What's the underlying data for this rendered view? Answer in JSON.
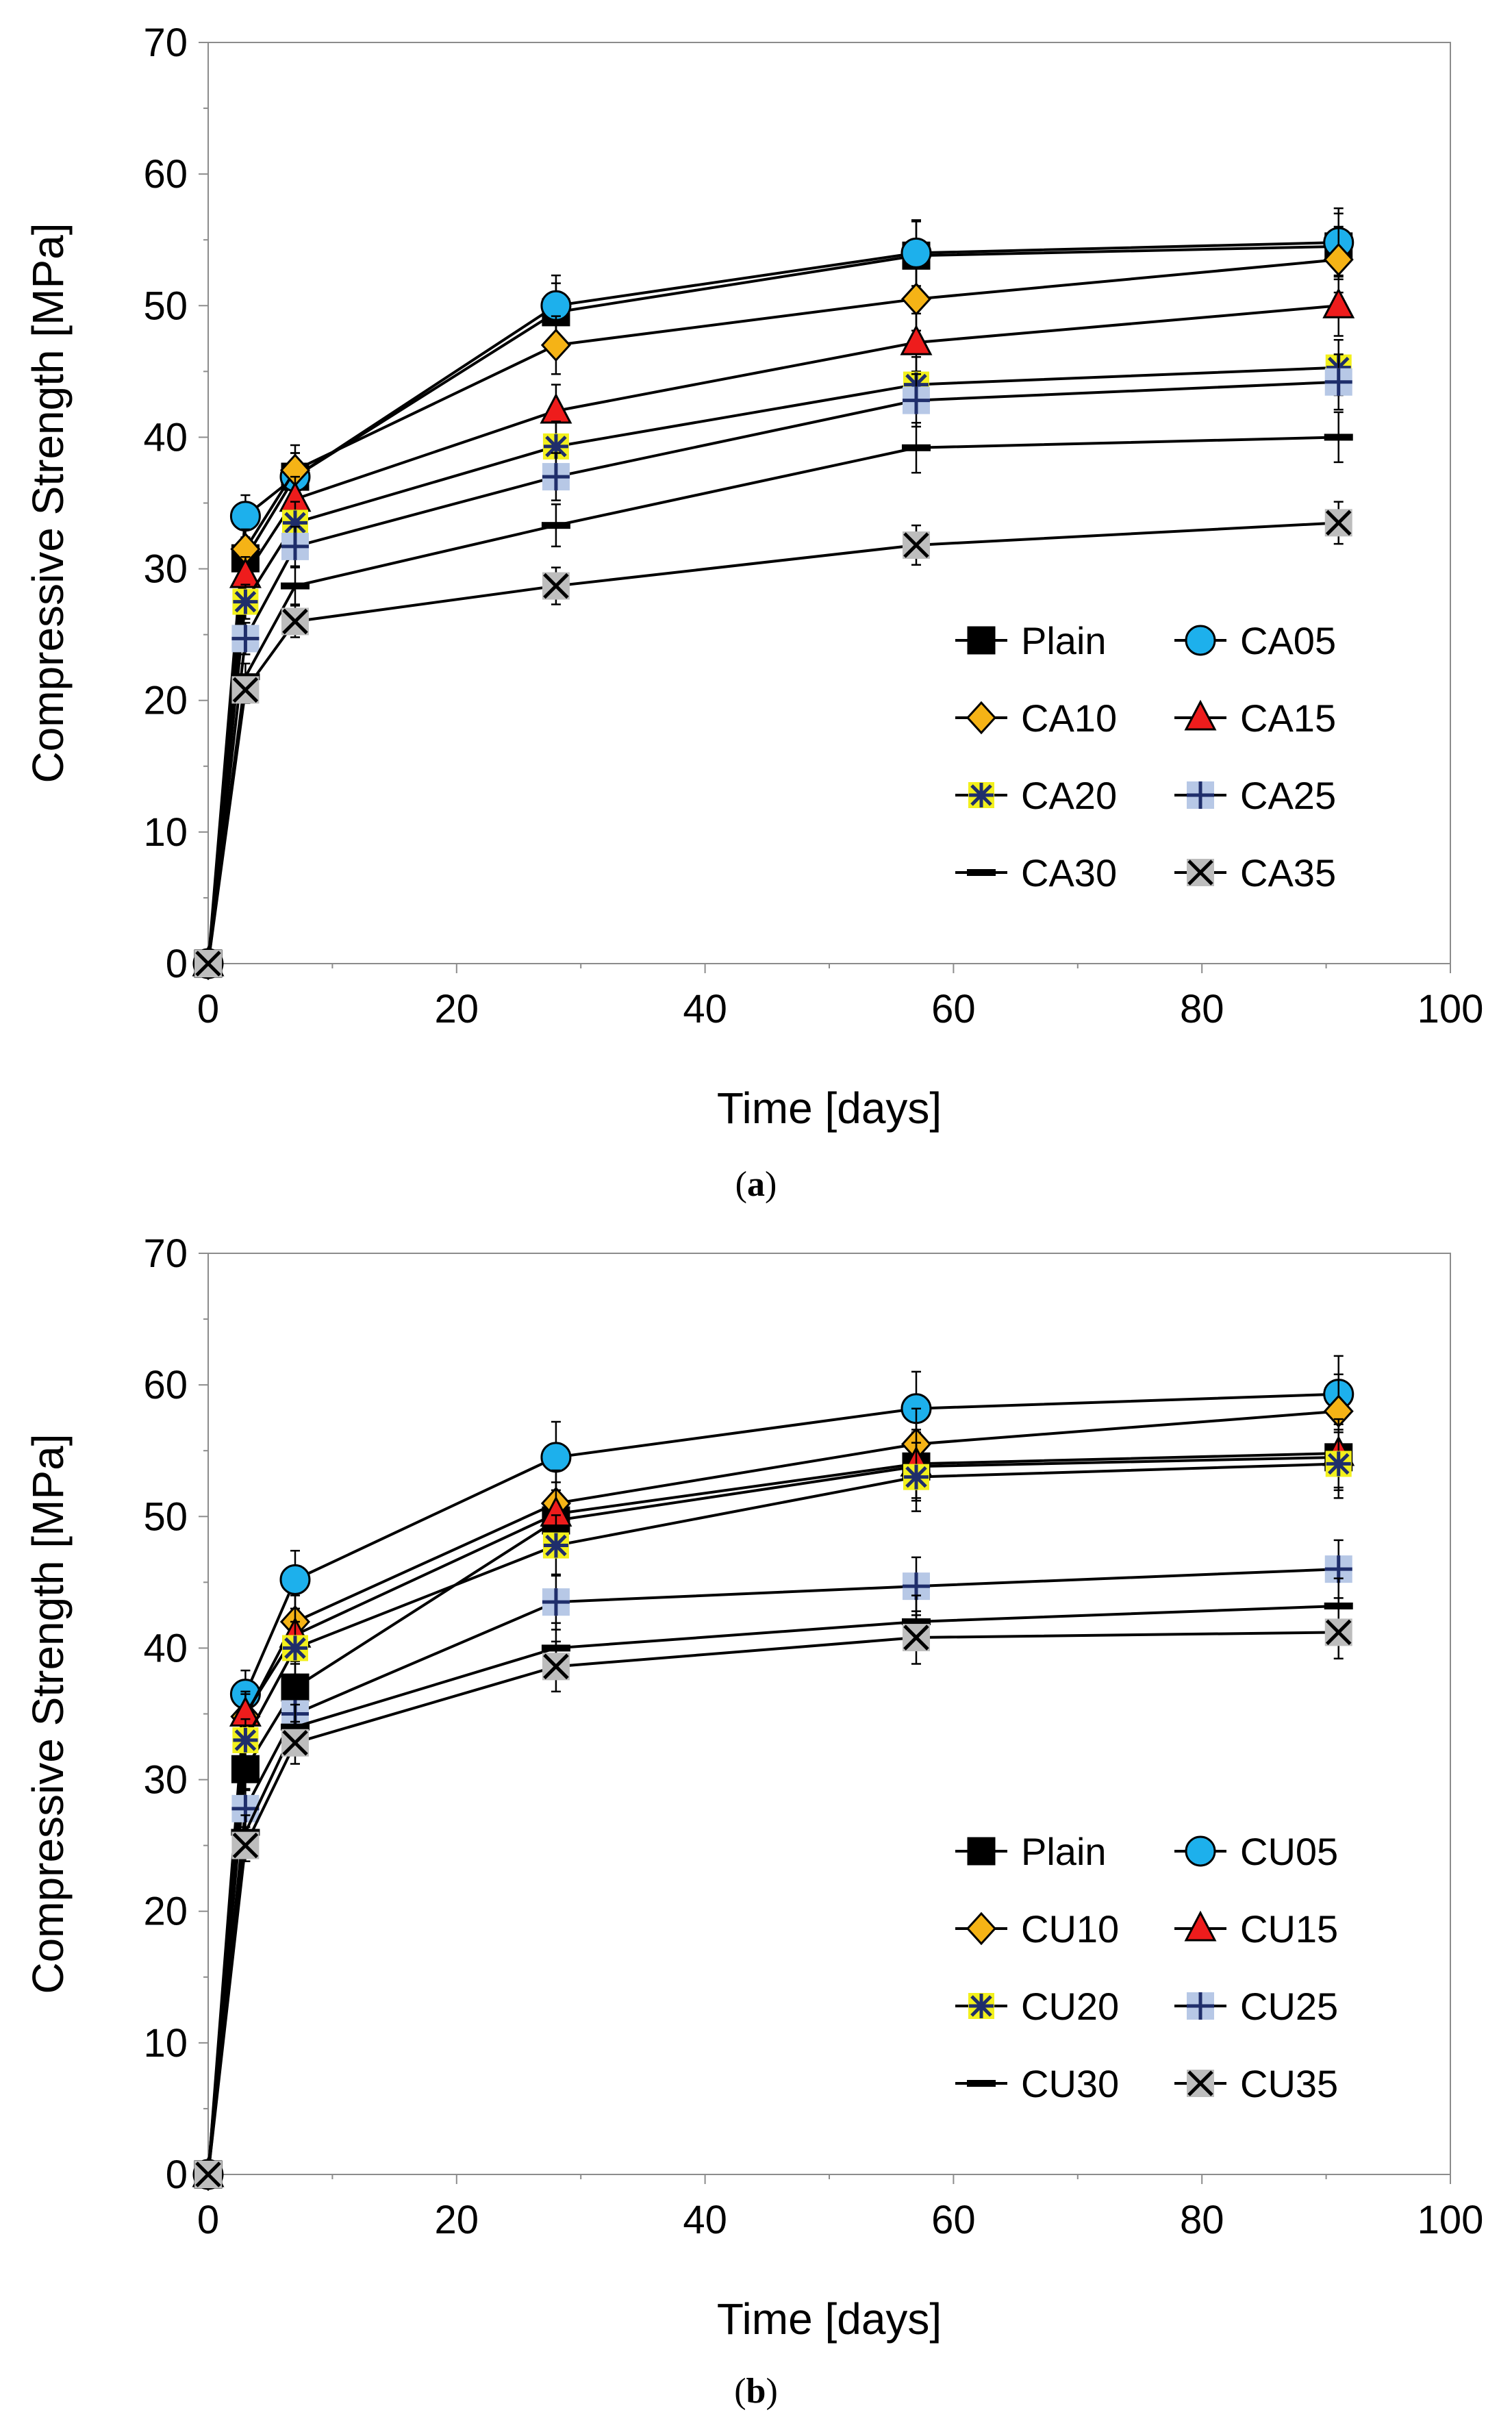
{
  "chart_data": [
    {
      "type": "line",
      "panel": "a",
      "caption": {
        "open": "(",
        "letter": "a",
        "close": ")"
      },
      "xlabel": "Time [days]",
      "ylabel": "Compressive Strength [MPa]",
      "xlim": [
        0,
        100
      ],
      "ylim": [
        0,
        70
      ],
      "xticks": [
        0,
        20,
        40,
        60,
        80,
        100
      ],
      "yticks": [
        0,
        10,
        20,
        30,
        40,
        50,
        60,
        70
      ],
      "grid": false,
      "legend_position": "bottom-right",
      "x": [
        0,
        3,
        7,
        28,
        57,
        91
      ],
      "series": [
        {
          "name": "Plain",
          "marker": "square",
          "values": [
            0,
            30.8,
            37.0,
            49.5,
            53.8,
            54.5
          ],
          "err": [
            0,
            1.5,
            1.8,
            2.2,
            2.6,
            2.5
          ]
        },
        {
          "name": "CA05",
          "marker": "circle",
          "values": [
            0,
            34.0,
            37.0,
            50.0,
            54.0,
            54.8
          ],
          "err": [
            0,
            1.6,
            1.8,
            2.3,
            2.5,
            2.6
          ]
        },
        {
          "name": "CA10",
          "marker": "diamond",
          "values": [
            0,
            31.5,
            37.5,
            47.0,
            50.5,
            53.5
          ],
          "err": [
            0,
            1.5,
            1.9,
            2.2,
            2.4,
            2.5
          ]
        },
        {
          "name": "CA15",
          "marker": "triangle",
          "values": [
            0,
            29.5,
            35.3,
            42.0,
            47.2,
            50.0
          ],
          "err": [
            0,
            1.4,
            1.7,
            2.0,
            2.2,
            2.3
          ]
        },
        {
          "name": "CA20",
          "marker": "asterisk",
          "values": [
            0,
            27.5,
            33.5,
            39.3,
            44.0,
            45.3
          ],
          "err": [
            0,
            1.3,
            1.6,
            1.9,
            2.1,
            2.1
          ]
        },
        {
          "name": "CA25",
          "marker": "plus",
          "values": [
            0,
            24.7,
            31.7,
            37.0,
            42.8,
            44.2
          ],
          "err": [
            0,
            1.2,
            1.5,
            1.8,
            2.0,
            2.1
          ]
        },
        {
          "name": "CA30",
          "marker": "dash",
          "values": [
            0,
            21.8,
            28.7,
            33.3,
            39.2,
            40.0
          ],
          "err": [
            0,
            1.0,
            1.4,
            1.6,
            1.9,
            1.9
          ]
        },
        {
          "name": "CA35",
          "marker": "cross",
          "values": [
            0,
            20.8,
            26.0,
            28.7,
            31.8,
            33.5
          ],
          "err": [
            0,
            1.0,
            1.2,
            1.4,
            1.5,
            1.6
          ]
        }
      ]
    },
    {
      "type": "line",
      "panel": "b",
      "caption": {
        "open": "(",
        "letter": "b",
        "close": ")"
      },
      "xlabel": "Time [days]",
      "ylabel": "Compressive Strength [MPa]",
      "xlim": [
        0,
        100
      ],
      "ylim": [
        0,
        70
      ],
      "xticks": [
        0,
        20,
        40,
        60,
        80,
        100
      ],
      "yticks": [
        0,
        10,
        20,
        30,
        40,
        50,
        60,
        70
      ],
      "grid": false,
      "legend_position": "bottom-right",
      "x": [
        0,
        3,
        7,
        28,
        57,
        91
      ],
      "series": [
        {
          "name": "Plain",
          "marker": "square",
          "values": [
            0,
            30.8,
            37.0,
            49.7,
            53.8,
            54.5
          ],
          "err": [
            0,
            1.5,
            1.8,
            2.3,
            2.6,
            2.5
          ]
        },
        {
          "name": "CU05",
          "marker": "circle",
          "values": [
            0,
            36.5,
            45.2,
            54.5,
            58.2,
            59.3
          ],
          "err": [
            0,
            1.8,
            2.2,
            2.7,
            2.8,
            2.9
          ]
        },
        {
          "name": "CU10",
          "marker": "diamond",
          "values": [
            0,
            34.8,
            42.0,
            51.0,
            55.5,
            58.0
          ],
          "err": [
            0,
            1.7,
            2.0,
            2.5,
            2.7,
            2.8
          ]
        },
        {
          "name": "CU15",
          "marker": "triangle",
          "values": [
            0,
            35.0,
            41.0,
            50.2,
            54.0,
            54.8
          ],
          "err": [
            0,
            1.7,
            2.0,
            2.4,
            2.6,
            2.6
          ]
        },
        {
          "name": "CU20",
          "marker": "asterisk",
          "values": [
            0,
            33.0,
            40.0,
            47.8,
            53.0,
            54.0
          ],
          "err": [
            0,
            1.6,
            2.0,
            2.3,
            2.6,
            2.6
          ]
        },
        {
          "name": "CU25",
          "marker": "plus",
          "values": [
            0,
            27.8,
            35.0,
            43.5,
            44.7,
            46.0
          ],
          "err": [
            0,
            1.4,
            1.7,
            2.1,
            2.2,
            2.2
          ]
        },
        {
          "name": "CU30",
          "marker": "dash",
          "values": [
            0,
            26.0,
            34.0,
            40.0,
            42.0,
            43.2
          ],
          "err": [
            0,
            1.3,
            1.7,
            1.9,
            2.0,
            2.1
          ]
        },
        {
          "name": "CU35",
          "marker": "cross",
          "values": [
            0,
            25.0,
            32.8,
            38.6,
            40.8,
            41.2
          ],
          "err": [
            0,
            1.2,
            1.6,
            1.9,
            2.0,
            2.0
          ]
        }
      ]
    }
  ],
  "styles": {
    "square": {
      "fill": "#000000",
      "stroke": "#000000"
    },
    "circle": {
      "fill": "#1DB0EC",
      "stroke": "#000000"
    },
    "diamond": {
      "fill": "#F5B316",
      "stroke": "#000000"
    },
    "triangle": {
      "fill": "#EE1C1C",
      "stroke": "#000000"
    },
    "asterisk": {
      "fill": "#F2F01C",
      "stroke": "#1F2E6B"
    },
    "plus": {
      "fill": "#B7C8E6",
      "stroke": "#1F2E6B"
    },
    "dash": {
      "fill": "#000000",
      "stroke": "#000000"
    },
    "cross": {
      "fill": "#BDBDBD",
      "stroke": "#000000"
    }
  }
}
